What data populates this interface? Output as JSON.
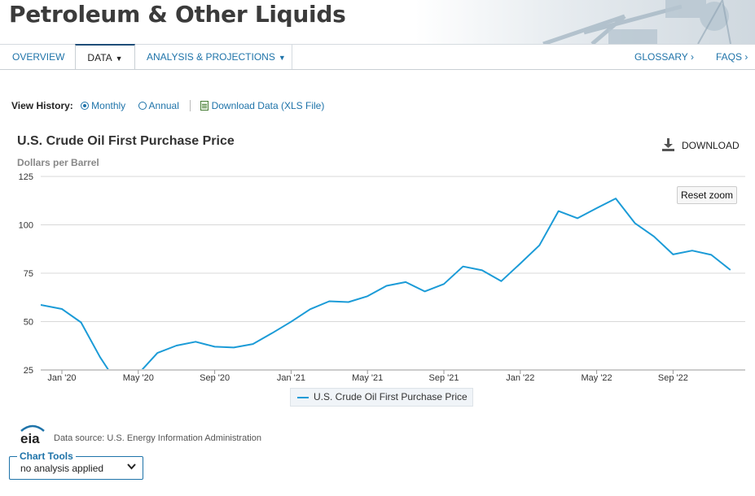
{
  "banner": {
    "title": "Petroleum & Other Liquids"
  },
  "nav": {
    "left": [
      {
        "label": "OVERVIEW",
        "caret": ""
      },
      {
        "label": "DATA",
        "caret": "▼"
      },
      {
        "label": "ANALYSIS & PROJECTIONS",
        "caret": "▼"
      }
    ],
    "right": [
      {
        "label": "GLOSSARY",
        "chevron": "›"
      },
      {
        "label": "FAQS",
        "chevron": "›"
      }
    ]
  },
  "history": {
    "label": "View History:",
    "options": [
      {
        "label": "Monthly",
        "selected": true
      },
      {
        "label": "Annual",
        "selected": false
      }
    ],
    "download_link": "Download Data (XLS File)"
  },
  "chart": {
    "download_label": "DOWNLOAD",
    "reset_zoom_label": "Reset zoom"
  },
  "chart_data": {
    "type": "line",
    "title": "U.S. Crude Oil First Purchase Price",
    "ylabel": "Dollars per Barrel",
    "ylim": [
      25,
      125
    ],
    "yticks": [
      25,
      50,
      75,
      100,
      125
    ],
    "xtick_labels": [
      "Jan '20",
      "May '20",
      "Sep '20",
      "Jan '21",
      "May '21",
      "Sep '21",
      "Jan '22",
      "May '22",
      "Sep '22"
    ],
    "x": [
      "Dec 2019",
      "Jan 2020",
      "Feb 2020",
      "Mar 2020",
      "Apr 2020",
      "May 2020",
      "Jun 2020",
      "Jul 2020",
      "Aug 2020",
      "Sep 2020",
      "Oct 2020",
      "Nov 2020",
      "Dec 2020",
      "Jan 2021",
      "Feb 2021",
      "Mar 2021",
      "Apr 2021",
      "May 2021",
      "Jun 2021",
      "Jul 2021",
      "Aug 2021",
      "Sep 2021",
      "Oct 2021",
      "Nov 2021",
      "Dec 2021",
      "Jan 2022",
      "Feb 2022",
      "Mar 2022",
      "Apr 2022",
      "May 2022",
      "Jun 2022",
      "Jul 2022",
      "Aug 2022",
      "Sep 2022",
      "Oct 2022",
      "Nov 2022",
      "Dec 2022"
    ],
    "series": [
      {
        "name": "U.S. Crude Oil First Purchase Price",
        "color": "#1b9bd7",
        "values": [
          58.4,
          56.5,
          49.6,
          31.6,
          16.6,
          23.0,
          33.8,
          37.6,
          39.6,
          37.0,
          36.6,
          38.4,
          44.0,
          49.9,
          56.4,
          60.5,
          60.1,
          63.1,
          68.5,
          70.4,
          65.6,
          69.4,
          78.5,
          76.5,
          70.9,
          80.0,
          89.4,
          107.1,
          103.4,
          108.6,
          113.6,
          100.9,
          94.0,
          84.7,
          86.7,
          84.5,
          76.7
        ]
      }
    ],
    "grid": "horizontal",
    "legend_position": "bottom-center"
  },
  "footer": {
    "logo_text": "eia",
    "source": "Data source: U.S. Energy Information Administration",
    "tools_label": "Chart Tools",
    "tools_value": "no analysis applied"
  },
  "colors": {
    "accent": "#1e73a9",
    "series": "#1b9bd7",
    "nav_active_border": "#1f4e79"
  }
}
